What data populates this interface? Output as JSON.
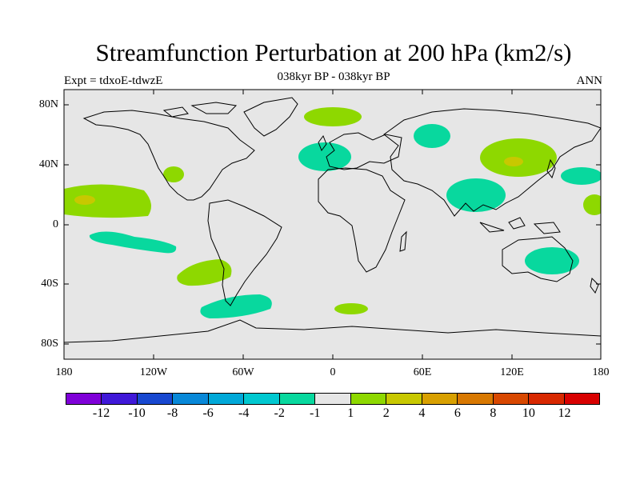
{
  "title": "Streamfunction Perturbation at 200 hPa (km2/s)",
  "subtitle": "038kyr BP - 038kyr BP",
  "left_label": "Expt = tdxoE-tdwzE",
  "right_label": "ANN",
  "lat_labels": [
    "80N",
    "40N",
    "0",
    "40S",
    "80S"
  ],
  "lon_labels": [
    "180",
    "120W",
    "60W",
    "0",
    "60E",
    "120E",
    "180"
  ],
  "colorbar": {
    "labels": [
      "-12",
      "-10",
      "-8",
      "-6",
      "-4",
      "-2",
      "-1",
      "1",
      "2",
      "4",
      "6",
      "8",
      "10",
      "12"
    ],
    "colors": [
      "#7f00d8",
      "#3f18d8",
      "#1848d0",
      "#0888d8",
      "#00a8d8",
      "#00c8d0",
      "#08d89e",
      "#e6e6e6",
      "#8ed800",
      "#c8c800",
      "#d8a000",
      "#d87800",
      "#d84800",
      "#d82800",
      "#d80000"
    ]
  },
  "chart_data": {
    "type": "heatmap",
    "variable": "Streamfunction Perturbation at 200 hPa",
    "units": "km2/s",
    "projection": "cylindrical equidistant",
    "xlim": [
      -180,
      180
    ],
    "ylim": [
      -90,
      90
    ],
    "contour_levels": [
      -12,
      -10,
      -8,
      -6,
      -4,
      -2,
      -1,
      1,
      2,
      4,
      6,
      8,
      10,
      12
    ],
    "regions": [
      {
        "level": "1 to 2",
        "lon": [
          -15,
          15
        ],
        "lat": [
          66,
          76
        ]
      },
      {
        "level": "-2 to -1",
        "lon": [
          51,
          76
        ],
        "lat": [
          52,
          66
        ]
      },
      {
        "level": "-2 to -1",
        "lon": [
          -20,
          15
        ],
        "lat": [
          37,
          55
        ]
      },
      {
        "level": "1 to 2",
        "lon": [
          95,
          148
        ],
        "lat": [
          30,
          58
        ]
      },
      {
        "level": "2 to 4",
        "lon": [
          118,
          128
        ],
        "lat": [
          40,
          46
        ]
      },
      {
        "level": "-2 to -1",
        "lon": [
          153,
          180
        ],
        "lat": [
          27,
          40
        ]
      },
      {
        "level": "-2 to -1",
        "lon": [
          78,
          120
        ],
        "lat": [
          8,
          32
        ]
      },
      {
        "level": "1 to 2",
        "lon": [
          168,
          180
        ],
        "lat": [
          6,
          20
        ]
      },
      {
        "level": "1 to 2",
        "lon": [
          -180,
          -130
        ],
        "lat": [
          5,
          26
        ]
      },
      {
        "level": "2 to 4",
        "lon": [
          -172,
          -158
        ],
        "lat": [
          14,
          19
        ]
      },
      {
        "level": "1 to 2",
        "lon": [
          -113,
          -100
        ],
        "lat": [
          27,
          38
        ]
      },
      {
        "level": "-2 to -1",
        "lon": [
          -163,
          -105
        ],
        "lat": [
          -23,
          -2
        ]
      },
      {
        "level": "1 to 2",
        "lon": [
          -105,
          -68
        ],
        "lat": [
          -42,
          -22
        ]
      },
      {
        "level": "-2 to -1",
        "lon": [
          -90,
          -42
        ],
        "lat": [
          -63,
          -46
        ]
      },
      {
        "level": "1 to 2",
        "lon": [
          0,
          24
        ],
        "lat": [
          -60,
          -52
        ]
      },
      {
        "level": "-2 to -1",
        "lon": [
          128,
          166
        ],
        "lat": [
          -42,
          -15
        ]
      }
    ]
  }
}
